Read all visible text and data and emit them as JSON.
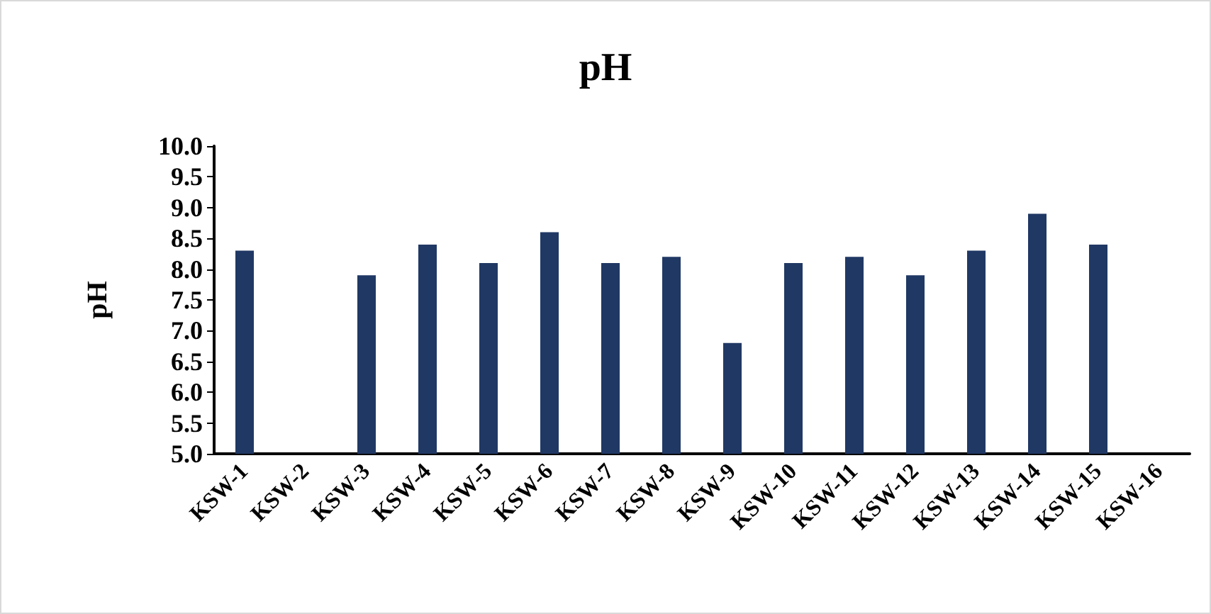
{
  "chart_data": {
    "type": "bar",
    "title": "pH",
    "ylabel": "pH",
    "categories": [
      "KSW-1",
      "KSW-2",
      "KSW-3",
      "KSW-4",
      "KSW-5",
      "KSW-6",
      "KSW-7",
      "KSW-8",
      "KSW-9",
      "KSW-10",
      "KSW-11",
      "KSW-12",
      "KSW-13",
      "KSW-14",
      "KSW-15",
      "KSW-16"
    ],
    "values": [
      8.3,
      null,
      7.9,
      8.4,
      8.1,
      8.6,
      8.1,
      8.2,
      6.8,
      8.1,
      8.2,
      7.9,
      8.3,
      8.9,
      8.4,
      null
    ],
    "color": "#203864",
    "ylim": [
      5.0,
      10.0
    ],
    "yticks": [
      {
        "value": 5,
        "label": "5.0"
      },
      {
        "value": 5.5,
        "label": "5.5"
      },
      {
        "value": 6,
        "label": "6.0"
      },
      {
        "value": 6.5,
        "label": "6.5"
      },
      {
        "value": 7,
        "label": "7.0"
      },
      {
        "value": 7.5,
        "label": "7.5"
      },
      {
        "value": 8,
        "label": "8.0"
      },
      {
        "value": 8.5,
        "label": "8.5"
      },
      {
        "value": 9,
        "label": "9.0"
      },
      {
        "value": 9.5,
        "label": "9.5"
      },
      {
        "value": 10,
        "label": "10.0"
      }
    ],
    "grid": false
  }
}
